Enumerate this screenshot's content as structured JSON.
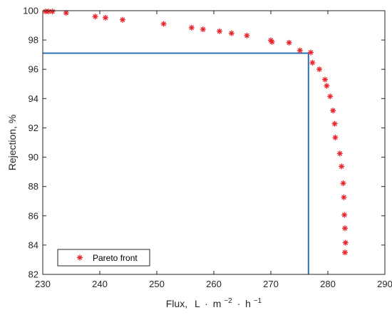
{
  "chart_data": {
    "type": "scatter",
    "xlabel_main": "Flux,",
    "xlabel_unit_L": "L",
    "xlabel_unit_m": "m",
    "xlabel_unit_m_exp": "−2",
    "xlabel_unit_h": "h",
    "xlabel_unit_h_exp": "−1",
    "ylabel": "Rejection, %",
    "xlim": [
      230,
      290
    ],
    "ylim": [
      82,
      100
    ],
    "xticks": [
      230,
      240,
      250,
      260,
      270,
      280,
      290
    ],
    "yticks": [
      82,
      84,
      86,
      88,
      90,
      92,
      94,
      96,
      98,
      100
    ],
    "grid": false,
    "legend": {
      "position": "bottom-left",
      "entries": [
        "Pareto front"
      ]
    },
    "colors": {
      "marker": "#e8232a",
      "selection": "#2e6fb8",
      "axis": "#262626"
    },
    "series": [
      {
        "name": "Pareto front",
        "marker": "asterisk",
        "x": [
          230.5,
          231.0,
          231.7,
          234.1,
          239.2,
          241.0,
          244.0,
          251.2,
          256.1,
          258.1,
          261.0,
          263.1,
          265.8,
          270.0,
          270.2,
          273.2,
          275.1,
          277.0,
          277.3,
          278.5,
          279.5,
          279.8,
          280.4,
          280.9,
          281.2,
          281.3,
          282.1,
          282.4,
          282.7,
          282.8,
          282.9,
          283.0,
          283.1,
          283.0
        ],
        "y": [
          99.95,
          99.95,
          99.95,
          99.85,
          99.6,
          99.52,
          99.38,
          99.1,
          98.84,
          98.73,
          98.6,
          98.46,
          98.3,
          97.98,
          97.87,
          97.82,
          97.29,
          97.15,
          96.45,
          96.0,
          95.3,
          94.87,
          94.15,
          93.18,
          92.28,
          91.34,
          90.25,
          89.37,
          88.22,
          87.26,
          86.06,
          85.15,
          84.16,
          83.5
        ]
      }
    ],
    "selection_lines": {
      "x": 276.6,
      "y": 97.1
    }
  }
}
